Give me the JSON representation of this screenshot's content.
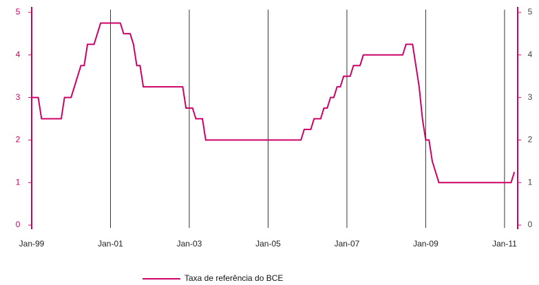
{
  "chart_data": {
    "type": "line",
    "x": [
      "1999-01",
      "1999-03",
      "1999-04",
      "1999-10",
      "1999-11",
      "2000-01",
      "2000-02",
      "2000-03",
      "2000-04",
      "2000-05",
      "2000-06",
      "2000-08",
      "2000-09",
      "2000-10",
      "2001-04",
      "2001-05",
      "2001-07",
      "2001-08",
      "2001-09",
      "2001-10",
      "2001-11",
      "2002-11",
      "2002-12",
      "2003-02",
      "2003-03",
      "2003-05",
      "2003-06",
      "2005-11",
      "2005-12",
      "2006-02",
      "2006-03",
      "2006-05",
      "2006-06",
      "2006-07",
      "2006-08",
      "2006-09",
      "2006-10",
      "2006-11",
      "2006-12",
      "2007-02",
      "2007-03",
      "2007-05",
      "2007-06",
      "2008-06",
      "2008-07",
      "2008-09",
      "2008-10",
      "2008-11",
      "2008-12",
      "2009-01",
      "2009-02",
      "2009-03",
      "2009-04",
      "2009-05",
      "2011-03",
      "2011-04"
    ],
    "series": [
      {
        "name": "Taxa de referência do BCE",
        "color": "#cc0066",
        "values": [
          3.0,
          3.0,
          2.5,
          2.5,
          3.0,
          3.0,
          3.25,
          3.5,
          3.75,
          3.75,
          4.25,
          4.25,
          4.5,
          4.75,
          4.75,
          4.5,
          4.5,
          4.25,
          3.75,
          3.75,
          3.25,
          3.25,
          2.75,
          2.75,
          2.5,
          2.5,
          2.0,
          2.0,
          2.25,
          2.25,
          2.5,
          2.5,
          2.75,
          2.75,
          3.0,
          3.0,
          3.25,
          3.25,
          3.5,
          3.5,
          3.75,
          3.75,
          4.0,
          4.0,
          4.25,
          4.25,
          3.75,
          3.25,
          2.5,
          2.0,
          2.0,
          1.5,
          1.25,
          1.0,
          1.0,
          1.25
        ]
      }
    ],
    "xlim": [
      "1999-01",
      "2011-05"
    ],
    "xticks": [
      {
        "value": "1999-01",
        "label": "Jan-99"
      },
      {
        "value": "2001-01",
        "label": "Jan-01"
      },
      {
        "value": "2003-01",
        "label": "Jan-03"
      },
      {
        "value": "2005-01",
        "label": "Jan-05"
      },
      {
        "value": "2007-01",
        "label": "Jan-07"
      },
      {
        "value": "2009-01",
        "label": "Jan-09"
      },
      {
        "value": "2011-01",
        "label": "Jan-11"
      }
    ],
    "ylim": [
      0,
      5
    ],
    "yticks": [
      0,
      1,
      2,
      3,
      4,
      5
    ],
    "y2lim": [
      0,
      5
    ],
    "y2ticks": [
      0,
      1,
      2,
      3,
      4,
      5
    ],
    "grid": true,
    "axis_color": "#cc0066",
    "legend": "bottom"
  }
}
